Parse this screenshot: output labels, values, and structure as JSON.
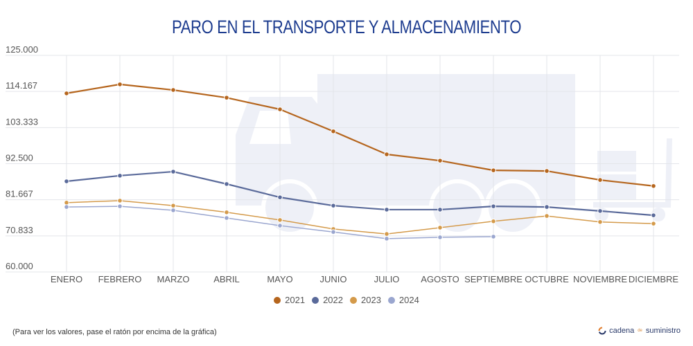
{
  "title": "PARO EN EL TRANSPORTE Y ALMACENAMIENTO",
  "footnote": "(Para ver los valores, pase el ratón por encima de la gráfica)",
  "brand": {
    "name_part1": "cadena",
    "name_part2": "de",
    "name_part3": "suministro",
    "icon": "circular-arrows-icon"
  },
  "background_illustration": "truck-and-hand-truck-silhouette",
  "chart_data": {
    "type": "line",
    "title": "PARO EN EL TRANSPORTE Y ALMACENAMIENTO",
    "xlabel": "",
    "ylabel": "",
    "ylim": [
      60000,
      125000
    ],
    "yticks": [
      60000,
      70833,
      81667,
      92500,
      103333,
      114167,
      125000
    ],
    "ytick_labels": [
      "60.000",
      "70.833",
      "81.667",
      "92.500",
      "103.333",
      "114.167",
      "125.000"
    ],
    "grid": true,
    "legend_position": "bottom",
    "categories": [
      "ENERO",
      "FEBRERO",
      "MARZO",
      "ABRIL",
      "MAYO",
      "JUNIO",
      "JULIO",
      "AGOSTO",
      "SEPTIEMBRE",
      "OCTUBRE",
      "NOVIEMBRE",
      "DICIEMBRE"
    ],
    "series": [
      {
        "name": "2021",
        "color": "#b5651d",
        "values": [
          113600,
          116300,
          114600,
          112300,
          108800,
          102200,
          95300,
          93400,
          90500,
          90300,
          87600,
          85800
        ]
      },
      {
        "name": "2022",
        "color": "#5a6a9a",
        "values": [
          87200,
          88900,
          90100,
          86400,
          82400,
          79900,
          78700,
          78700,
          79700,
          79500,
          78300,
          77000
        ]
      },
      {
        "name": "2023",
        "color": "#d49a4a",
        "values": [
          80800,
          81400,
          79900,
          77900,
          75600,
          72900,
          71400,
          73300,
          75200,
          76800,
          75000,
          74500
        ]
      },
      {
        "name": "2024",
        "color": "#9aa6cf",
        "values": [
          79500,
          79700,
          78500,
          76200,
          73900,
          72000,
          70000,
          70400,
          70600,
          null,
          null,
          null
        ]
      }
    ]
  }
}
